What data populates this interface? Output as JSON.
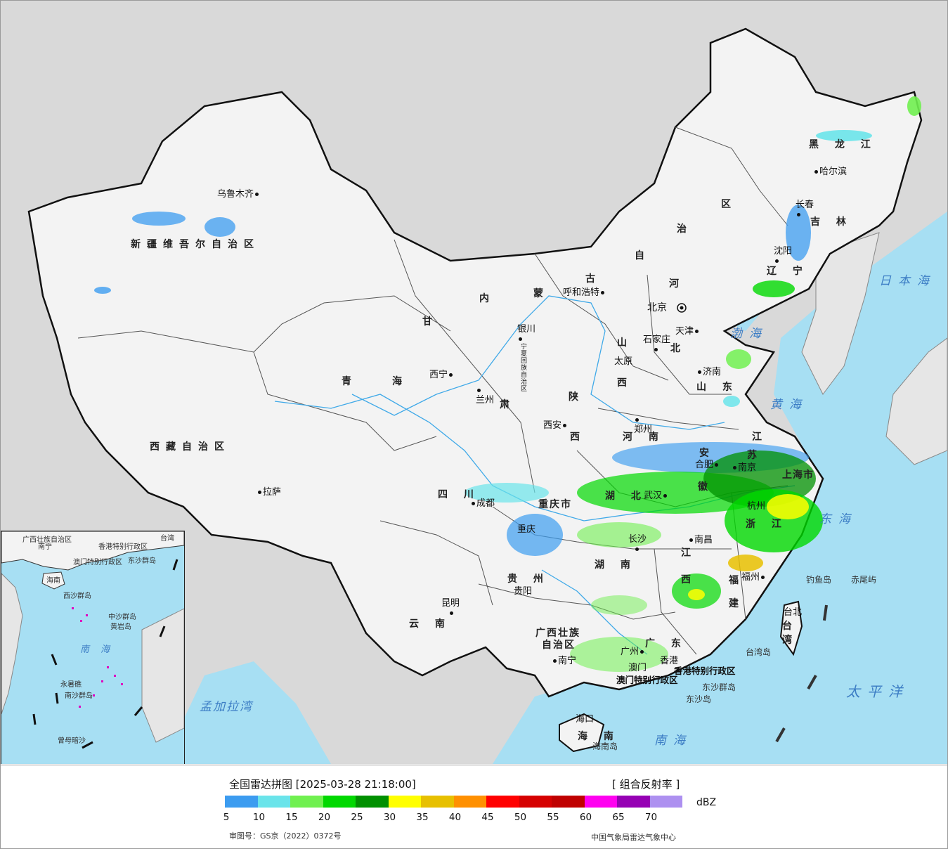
{
  "map": {
    "sea_color": "#a7dff3",
    "land_color": "#f3f3f3",
    "outside_color": "#d9d9d9",
    "provinces": [
      "新疆维吾尔自治区",
      "西藏自治区",
      "青海",
      "甘肃",
      "内蒙古自治区",
      "黑龙江",
      "吉林",
      "辽宁",
      "河北",
      "山西",
      "陕西",
      "四川",
      "云南",
      "贵州",
      "湖南",
      "湖北",
      "河南",
      "山东",
      "江苏",
      "安徽",
      "浙江",
      "江西",
      "福建",
      "广东",
      "广西壮族自治区",
      "海南",
      "台湾",
      "宁夏回族自治区",
      "重庆市",
      "上海市"
    ],
    "province_labels": [
      {
        "name": "prov-xinjiang",
        "text": "新疆维吾尔自治区"
      },
      {
        "name": "prov-xizang",
        "text": "西藏自治区"
      },
      {
        "name": "prov-qinghai-1",
        "text": "青"
      },
      {
        "name": "prov-qinghai-2",
        "text": "海"
      },
      {
        "name": "prov-gansu-1",
        "text": "甘"
      },
      {
        "name": "prov-gansu-2",
        "text": "肃"
      },
      {
        "name": "prov-nmg-1",
        "text": "内"
      },
      {
        "name": "prov-nmg-2",
        "text": "蒙"
      },
      {
        "name": "prov-nmg-3",
        "text": "古"
      },
      {
        "name": "prov-nmg-4",
        "text": "自"
      },
      {
        "name": "prov-nmg-5",
        "text": "治"
      },
      {
        "name": "prov-nmg-6",
        "text": "区"
      },
      {
        "name": "prov-hlj",
        "text": "黑 龙 江"
      },
      {
        "name": "prov-jilin",
        "text": "吉 林"
      },
      {
        "name": "prov-liaoning",
        "text": "辽 宁"
      },
      {
        "name": "prov-hebei-1",
        "text": "河"
      },
      {
        "name": "prov-hebei-2",
        "text": "北"
      },
      {
        "name": "prov-shanxi-1",
        "text": "山"
      },
      {
        "name": "prov-shanxi-2",
        "text": "西"
      },
      {
        "name": "prov-shaanxi-1",
        "text": "陕"
      },
      {
        "name": "prov-shaanxi-2",
        "text": "西"
      },
      {
        "name": "prov-henan",
        "text": "河 南"
      },
      {
        "name": "prov-shandong",
        "text": "山 东"
      },
      {
        "name": "prov-jiangsu-1",
        "text": "江"
      },
      {
        "name": "prov-jiangsu-2",
        "text": "苏"
      },
      {
        "name": "prov-anhui-1",
        "text": "安"
      },
      {
        "name": "prov-anhui-2",
        "text": "徽"
      },
      {
        "name": "prov-hubei",
        "text": "湖 北"
      },
      {
        "name": "prov-sichuan",
        "text": "四 川"
      },
      {
        "name": "prov-chongqing",
        "text": "重庆市"
      },
      {
        "name": "prov-zhejiang",
        "text": "浙 江"
      },
      {
        "name": "prov-jiangxi-1",
        "text": "江"
      },
      {
        "name": "prov-jiangxi-2",
        "text": "西"
      },
      {
        "name": "prov-hunan",
        "text": "湖 南"
      },
      {
        "name": "prov-guizhou",
        "text": "贵 州"
      },
      {
        "name": "prov-fujian-1",
        "text": "福"
      },
      {
        "name": "prov-fujian-2",
        "text": "建"
      },
      {
        "name": "prov-yunnan",
        "text": "云 南"
      },
      {
        "name": "prov-guangxi-1",
        "text": "广西壮族"
      },
      {
        "name": "prov-guangxi-2",
        "text": "自治区"
      },
      {
        "name": "prov-guangdong",
        "text": "广 东"
      },
      {
        "name": "prov-hainan",
        "text": "海 南"
      },
      {
        "name": "prov-taiwan-1",
        "text": "台"
      },
      {
        "name": "prov-taiwan-2",
        "text": "湾"
      },
      {
        "name": "prov-shanghai",
        "text": "上海市"
      },
      {
        "name": "prov-ningxia",
        "text": "宁夏回族自治区"
      },
      {
        "name": "prov-beijing",
        "text": "北京"
      },
      {
        "name": "prov-tianjin",
        "text": "天津"
      }
    ],
    "cities": [
      {
        "name": "city-urumqi",
        "text": "乌鲁木齐"
      },
      {
        "name": "city-lhasa",
        "text": "拉萨"
      },
      {
        "name": "city-xining",
        "text": "西宁"
      },
      {
        "name": "city-lanzhou",
        "text": "兰州"
      },
      {
        "name": "city-yinchuan",
        "text": "银川"
      },
      {
        "name": "city-hohhot",
        "text": "呼和浩特"
      },
      {
        "name": "city-harbin",
        "text": "哈尔滨"
      },
      {
        "name": "city-changchun",
        "text": "长春"
      },
      {
        "name": "city-shenyang",
        "text": "沈阳"
      },
      {
        "name": "city-tianjin",
        "text": "天津"
      },
      {
        "name": "city-shijiazhuang",
        "text": "石家庄"
      },
      {
        "name": "city-taiyuan",
        "text": "太原"
      },
      {
        "name": "city-jinan",
        "text": "济南"
      },
      {
        "name": "city-zhengzhou",
        "text": "郑州"
      },
      {
        "name": "city-xian",
        "text": "西安"
      },
      {
        "name": "city-hefei",
        "text": "合肥"
      },
      {
        "name": "city-nanjing",
        "text": "南京"
      },
      {
        "name": "city-wuhan",
        "text": "武汉"
      },
      {
        "name": "city-chengdu",
        "text": "成都"
      },
      {
        "name": "city-chongqing",
        "text": "重庆"
      },
      {
        "name": "city-changsha",
        "text": "长沙"
      },
      {
        "name": "city-nanchang",
        "text": "南昌"
      },
      {
        "name": "city-hangzhou",
        "text": "杭州"
      },
      {
        "name": "city-fuzhou",
        "text": "福州"
      },
      {
        "name": "city-guiyang",
        "text": "贵阳"
      },
      {
        "name": "city-kunming",
        "text": "昆明"
      },
      {
        "name": "city-nanning",
        "text": "南宁"
      },
      {
        "name": "city-guangzhou",
        "text": "广州"
      },
      {
        "name": "city-haikou",
        "text": "海口"
      },
      {
        "name": "city-taibei",
        "text": "台北"
      },
      {
        "name": "city-macau",
        "text": "澳门"
      },
      {
        "name": "city-hongkong",
        "text": "香港"
      }
    ],
    "seas": [
      {
        "name": "sea-japan",
        "text": "日本海"
      },
      {
        "name": "sea-bohai",
        "text": "渤海"
      },
      {
        "name": "sea-yellow",
        "text": "黄海"
      },
      {
        "name": "sea-east",
        "text": "东海"
      },
      {
        "name": "sea-pacific",
        "text": "太平洋"
      },
      {
        "name": "sea-south",
        "text": "南海"
      },
      {
        "name": "sea-bengal",
        "text": "孟加拉湾"
      }
    ],
    "sar_labels": [
      {
        "name": "sar-hk",
        "text": "香港特别行政区"
      },
      {
        "name": "sar-macau",
        "text": "澳门特别行政区"
      }
    ],
    "islands": [
      {
        "name": "isl-diaoyu",
        "text": "钓鱼岛"
      },
      {
        "name": "isl-chiwei",
        "text": "赤尾屿"
      },
      {
        "name": "isl-taiwan",
        "text": "台湾岛"
      },
      {
        "name": "isl-dongsha-1",
        "text": "东沙群岛"
      },
      {
        "name": "isl-dongsha-2",
        "text": "东沙岛"
      },
      {
        "name": "isl-hainan",
        "text": "海南岛"
      }
    ],
    "inset": {
      "labels": {
        "guangxi": "广西壮族自治区",
        "nanning": "南宁",
        "hk": "香港特别行政区",
        "macau": "澳门特别行政区",
        "dongsha": "东沙群岛",
        "hainan": "海南",
        "xisha": "西沙群岛",
        "zhongsha": "中沙群岛",
        "huangyan": "黄岩岛",
        "nanhai": "南 海",
        "nansha": "南沙群岛",
        "zengmu": "曾母暗沙",
        "yongshu": "永暑礁",
        "taiwan": "台湾"
      }
    }
  },
  "legend": {
    "title": "全国雷达拼图 [2025-03-28 21:18:00]",
    "product": "[ 组合反射率 ]",
    "unit": "dBZ",
    "colors": [
      "#3c9cf0",
      "#6ae4ea",
      "#70f050",
      "#00d800",
      "#009000",
      "#ffff00",
      "#e7c000",
      "#ff9000",
      "#ff0000",
      "#d60000",
      "#c00000",
      "#ff00f0",
      "#9600b4",
      "#ad90f0"
    ],
    "ticks": [
      "5",
      "10",
      "15",
      "20",
      "25",
      "30",
      "35",
      "40",
      "45",
      "50",
      "55",
      "60",
      "65",
      "70"
    ],
    "approval": "审图号：GS京（2022）0372号",
    "producer": "中国气象局雷达气象中心"
  }
}
